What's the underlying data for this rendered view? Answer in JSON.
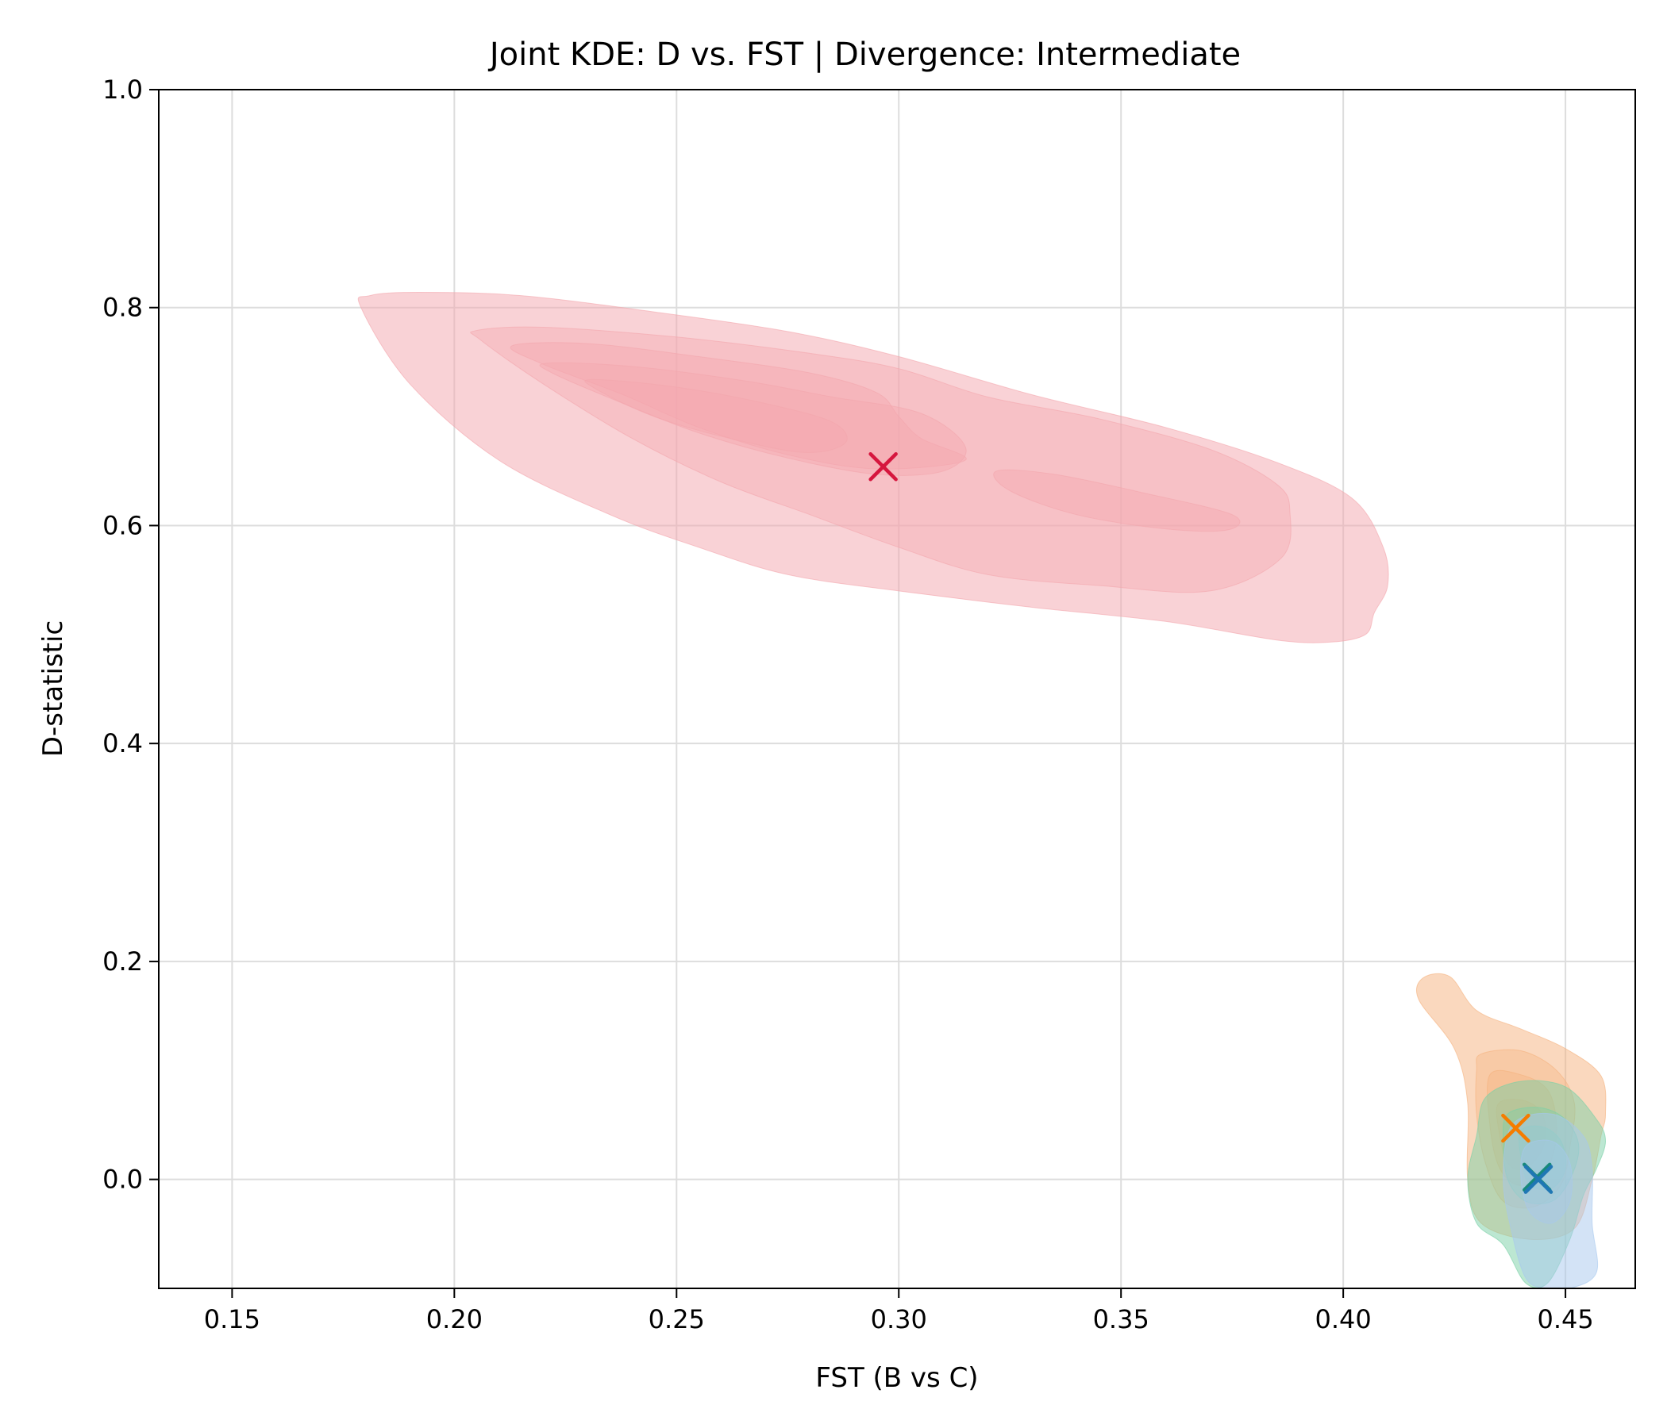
{
  "chart_data": {
    "type": "kde_contour",
    "title": "Joint KDE: D vs. FST | Divergence: Intermediate",
    "xlabel": "FST (B vs C)",
    "ylabel": "D-statistic",
    "xlim": [
      0.1335,
      0.4657
    ],
    "ylim": [
      -0.1,
      1.0
    ],
    "xticks": [
      "0.15",
      "0.20",
      "0.25",
      "0.30",
      "0.35",
      "0.40",
      "0.45"
    ],
    "yticks": [
      "0.0",
      "0.2",
      "0.4",
      "0.6",
      "0.8",
      "1.0"
    ],
    "grid": true,
    "legend": "none",
    "series": [
      {
        "color": "#f4a6ae",
        "marker_color": "#d6163e",
        "centroid": [
          0.2965,
          0.654
        ],
        "contours": [
          [
            [
              0.181,
              0.811
            ],
            [
              0.192,
              0.814
            ],
            [
              0.215,
              0.811
            ],
            [
              0.245,
              0.796
            ],
            [
              0.275,
              0.778
            ],
            [
              0.3,
              0.755
            ],
            [
              0.33,
              0.72
            ],
            [
              0.36,
              0.69
            ],
            [
              0.385,
              0.658
            ],
            [
              0.402,
              0.625
            ],
            [
              0.409,
              0.58
            ],
            [
              0.41,
              0.545
            ],
            [
              0.407,
              0.52
            ],
            [
              0.405,
              0.5
            ],
            [
              0.397,
              0.493
            ],
            [
              0.385,
              0.495
            ],
            [
              0.36,
              0.512
            ],
            [
              0.33,
              0.525
            ],
            [
              0.3,
              0.54
            ],
            [
              0.275,
              0.555
            ],
            [
              0.255,
              0.58
            ],
            [
              0.235,
              0.61
            ],
            [
              0.21,
              0.66
            ],
            [
              0.19,
              0.73
            ],
            [
              0.179,
              0.8
            ]
          ],
          [
            [
              0.205,
              0.779
            ],
            [
              0.22,
              0.782
            ],
            [
              0.25,
              0.773
            ],
            [
              0.28,
              0.758
            ],
            [
              0.3,
              0.744
            ],
            [
              0.32,
              0.718
            ],
            [
              0.345,
              0.698
            ],
            [
              0.37,
              0.67
            ],
            [
              0.385,
              0.638
            ],
            [
              0.388,
              0.612
            ],
            [
              0.386,
              0.57
            ],
            [
              0.37,
              0.54
            ],
            [
              0.345,
              0.545
            ],
            [
              0.32,
              0.555
            ],
            [
              0.3,
              0.58
            ],
            [
              0.28,
              0.61
            ],
            [
              0.26,
              0.64
            ],
            [
              0.24,
              0.68
            ],
            [
              0.22,
              0.73
            ],
            [
              0.206,
              0.77
            ]
          ],
          [
            [
              0.213,
              0.765
            ],
            [
              0.23,
              0.767
            ],
            [
              0.255,
              0.755
            ],
            [
              0.28,
              0.74
            ],
            [
              0.295,
              0.722
            ],
            [
              0.3,
              0.7
            ],
            [
              0.305,
              0.68
            ],
            [
              0.315,
              0.66
            ],
            [
              0.295,
              0.652
            ],
            [
              0.275,
              0.665
            ],
            [
              0.255,
              0.69
            ],
            [
              0.238,
              0.72
            ],
            [
              0.22,
              0.748
            ]
          ],
          [
            [
              0.221,
              0.749
            ],
            [
              0.24,
              0.746
            ],
            [
              0.265,
              0.733
            ],
            [
              0.285,
              0.718
            ],
            [
              0.305,
              0.703
            ],
            [
              0.315,
              0.672
            ],
            [
              0.31,
              0.65
            ],
            [
              0.295,
              0.647
            ],
            [
              0.275,
              0.662
            ],
            [
              0.255,
              0.685
            ],
            [
              0.238,
              0.712
            ],
            [
              0.222,
              0.74
            ]
          ],
          [
            [
              0.231,
              0.734
            ],
            [
              0.25,
              0.727
            ],
            [
              0.27,
              0.712
            ],
            [
              0.285,
              0.695
            ],
            [
              0.288,
              0.676
            ],
            [
              0.279,
              0.667
            ],
            [
              0.262,
              0.68
            ],
            [
              0.245,
              0.7
            ],
            [
              0.232,
              0.725
            ]
          ],
          [
            [
              0.322,
              0.65
            ],
            [
              0.335,
              0.647
            ],
            [
              0.355,
              0.63
            ],
            [
              0.375,
              0.61
            ],
            [
              0.374,
              0.596
            ],
            [
              0.36,
              0.597
            ],
            [
              0.34,
              0.61
            ],
            [
              0.325,
              0.632
            ]
          ]
        ]
      },
      {
        "color": "#f5b27e",
        "marker_color": "#f57c00",
        "centroid": [
          0.4388,
          0.047
        ],
        "contours": [
          [
            [
              0.418,
              0.185
            ],
            [
              0.424,
              0.186
            ],
            [
              0.43,
              0.155
            ],
            [
              0.44,
              0.138
            ],
            [
              0.45,
              0.12
            ],
            [
              0.458,
              0.095
            ],
            [
              0.459,
              0.06
            ],
            [
              0.458,
              0.04
            ],
            [
              0.456,
              0.0
            ],
            [
              0.452,
              -0.045
            ],
            [
              0.442,
              -0.055
            ],
            [
              0.431,
              -0.04
            ],
            [
              0.428,
              0.0
            ],
            [
              0.428,
              0.07
            ],
            [
              0.425,
              0.12
            ],
            [
              0.417,
              0.165
            ]
          ],
          [
            [
              0.431,
              0.115
            ],
            [
              0.44,
              0.118
            ],
            [
              0.448,
              0.1
            ],
            [
              0.452,
              0.07
            ],
            [
              0.451,
              0.03
            ],
            [
              0.449,
              -0.005
            ],
            [
              0.443,
              -0.025
            ],
            [
              0.436,
              -0.02
            ],
            [
              0.432,
              0.015
            ],
            [
              0.43,
              0.06
            ],
            [
              0.43,
              0.1
            ]
          ],
          [
            [
              0.433,
              0.096
            ],
            [
              0.44,
              0.096
            ],
            [
              0.446,
              0.082
            ],
            [
              0.448,
              0.05
            ],
            [
              0.447,
              0.02
            ],
            [
              0.444,
              0.0
            ],
            [
              0.439,
              -0.005
            ],
            [
              0.435,
              0.012
            ],
            [
              0.433,
              0.05
            ]
          ],
          [
            [
              0.435,
              0.07
            ],
            [
              0.441,
              0.072
            ],
            [
              0.445,
              0.058
            ],
            [
              0.445,
              0.03
            ],
            [
              0.441,
              0.01
            ],
            [
              0.437,
              0.015
            ],
            [
              0.435,
              0.045
            ]
          ]
        ]
      },
      {
        "color": "#7ad0a6",
        "marker_color": "#17897a",
        "centroid": [
          0.4436,
          0.002
        ],
        "contours": [
          [
            [
              0.432,
              0.075
            ],
            [
              0.44,
              0.09
            ],
            [
              0.45,
              0.085
            ],
            [
              0.457,
              0.055
            ],
            [
              0.459,
              0.035
            ],
            [
              0.457,
              0.01
            ],
            [
              0.454,
              -0.015
            ],
            [
              0.451,
              -0.055
            ],
            [
              0.446,
              -0.095
            ],
            [
              0.441,
              -0.095
            ],
            [
              0.436,
              -0.06
            ],
            [
              0.43,
              -0.04
            ],
            [
              0.428,
              0.0
            ],
            [
              0.43,
              0.04
            ]
          ],
          [
            [
              0.437,
              0.06
            ],
            [
              0.444,
              0.066
            ],
            [
              0.45,
              0.055
            ],
            [
              0.453,
              0.03
            ],
            [
              0.451,
              0.0
            ],
            [
              0.447,
              -0.02
            ],
            [
              0.441,
              -0.02
            ],
            [
              0.437,
              0.0
            ],
            [
              0.436,
              0.035
            ]
          ],
          [
            [
              0.44,
              0.045
            ],
            [
              0.445,
              0.048
            ],
            [
              0.449,
              0.035
            ],
            [
              0.45,
              0.01
            ],
            [
              0.447,
              -0.008
            ],
            [
              0.442,
              -0.005
            ],
            [
              0.44,
              0.02
            ]
          ]
        ]
      },
      {
        "color": "#a7c8ee",
        "marker_color": "#1f77b4",
        "centroid": [
          0.4439,
          0.0
        ],
        "contours": [
          [
            [
              0.438,
              0.05
            ],
            [
              0.447,
              0.06
            ],
            [
              0.454,
              0.04
            ],
            [
              0.456,
              0.01
            ],
            [
              0.456,
              -0.04
            ],
            [
              0.457,
              -0.085
            ],
            [
              0.451,
              -0.1
            ],
            [
              0.445,
              -0.1
            ],
            [
              0.441,
              -0.09
            ],
            [
              0.438,
              -0.05
            ],
            [
              0.436,
              0.0
            ]
          ],
          [
            [
              0.441,
              0.03
            ],
            [
              0.447,
              0.035
            ],
            [
              0.451,
              0.015
            ],
            [
              0.451,
              -0.02
            ],
            [
              0.447,
              -0.04
            ],
            [
              0.442,
              -0.03
            ],
            [
              0.44,
              0.0
            ]
          ]
        ]
      }
    ]
  }
}
